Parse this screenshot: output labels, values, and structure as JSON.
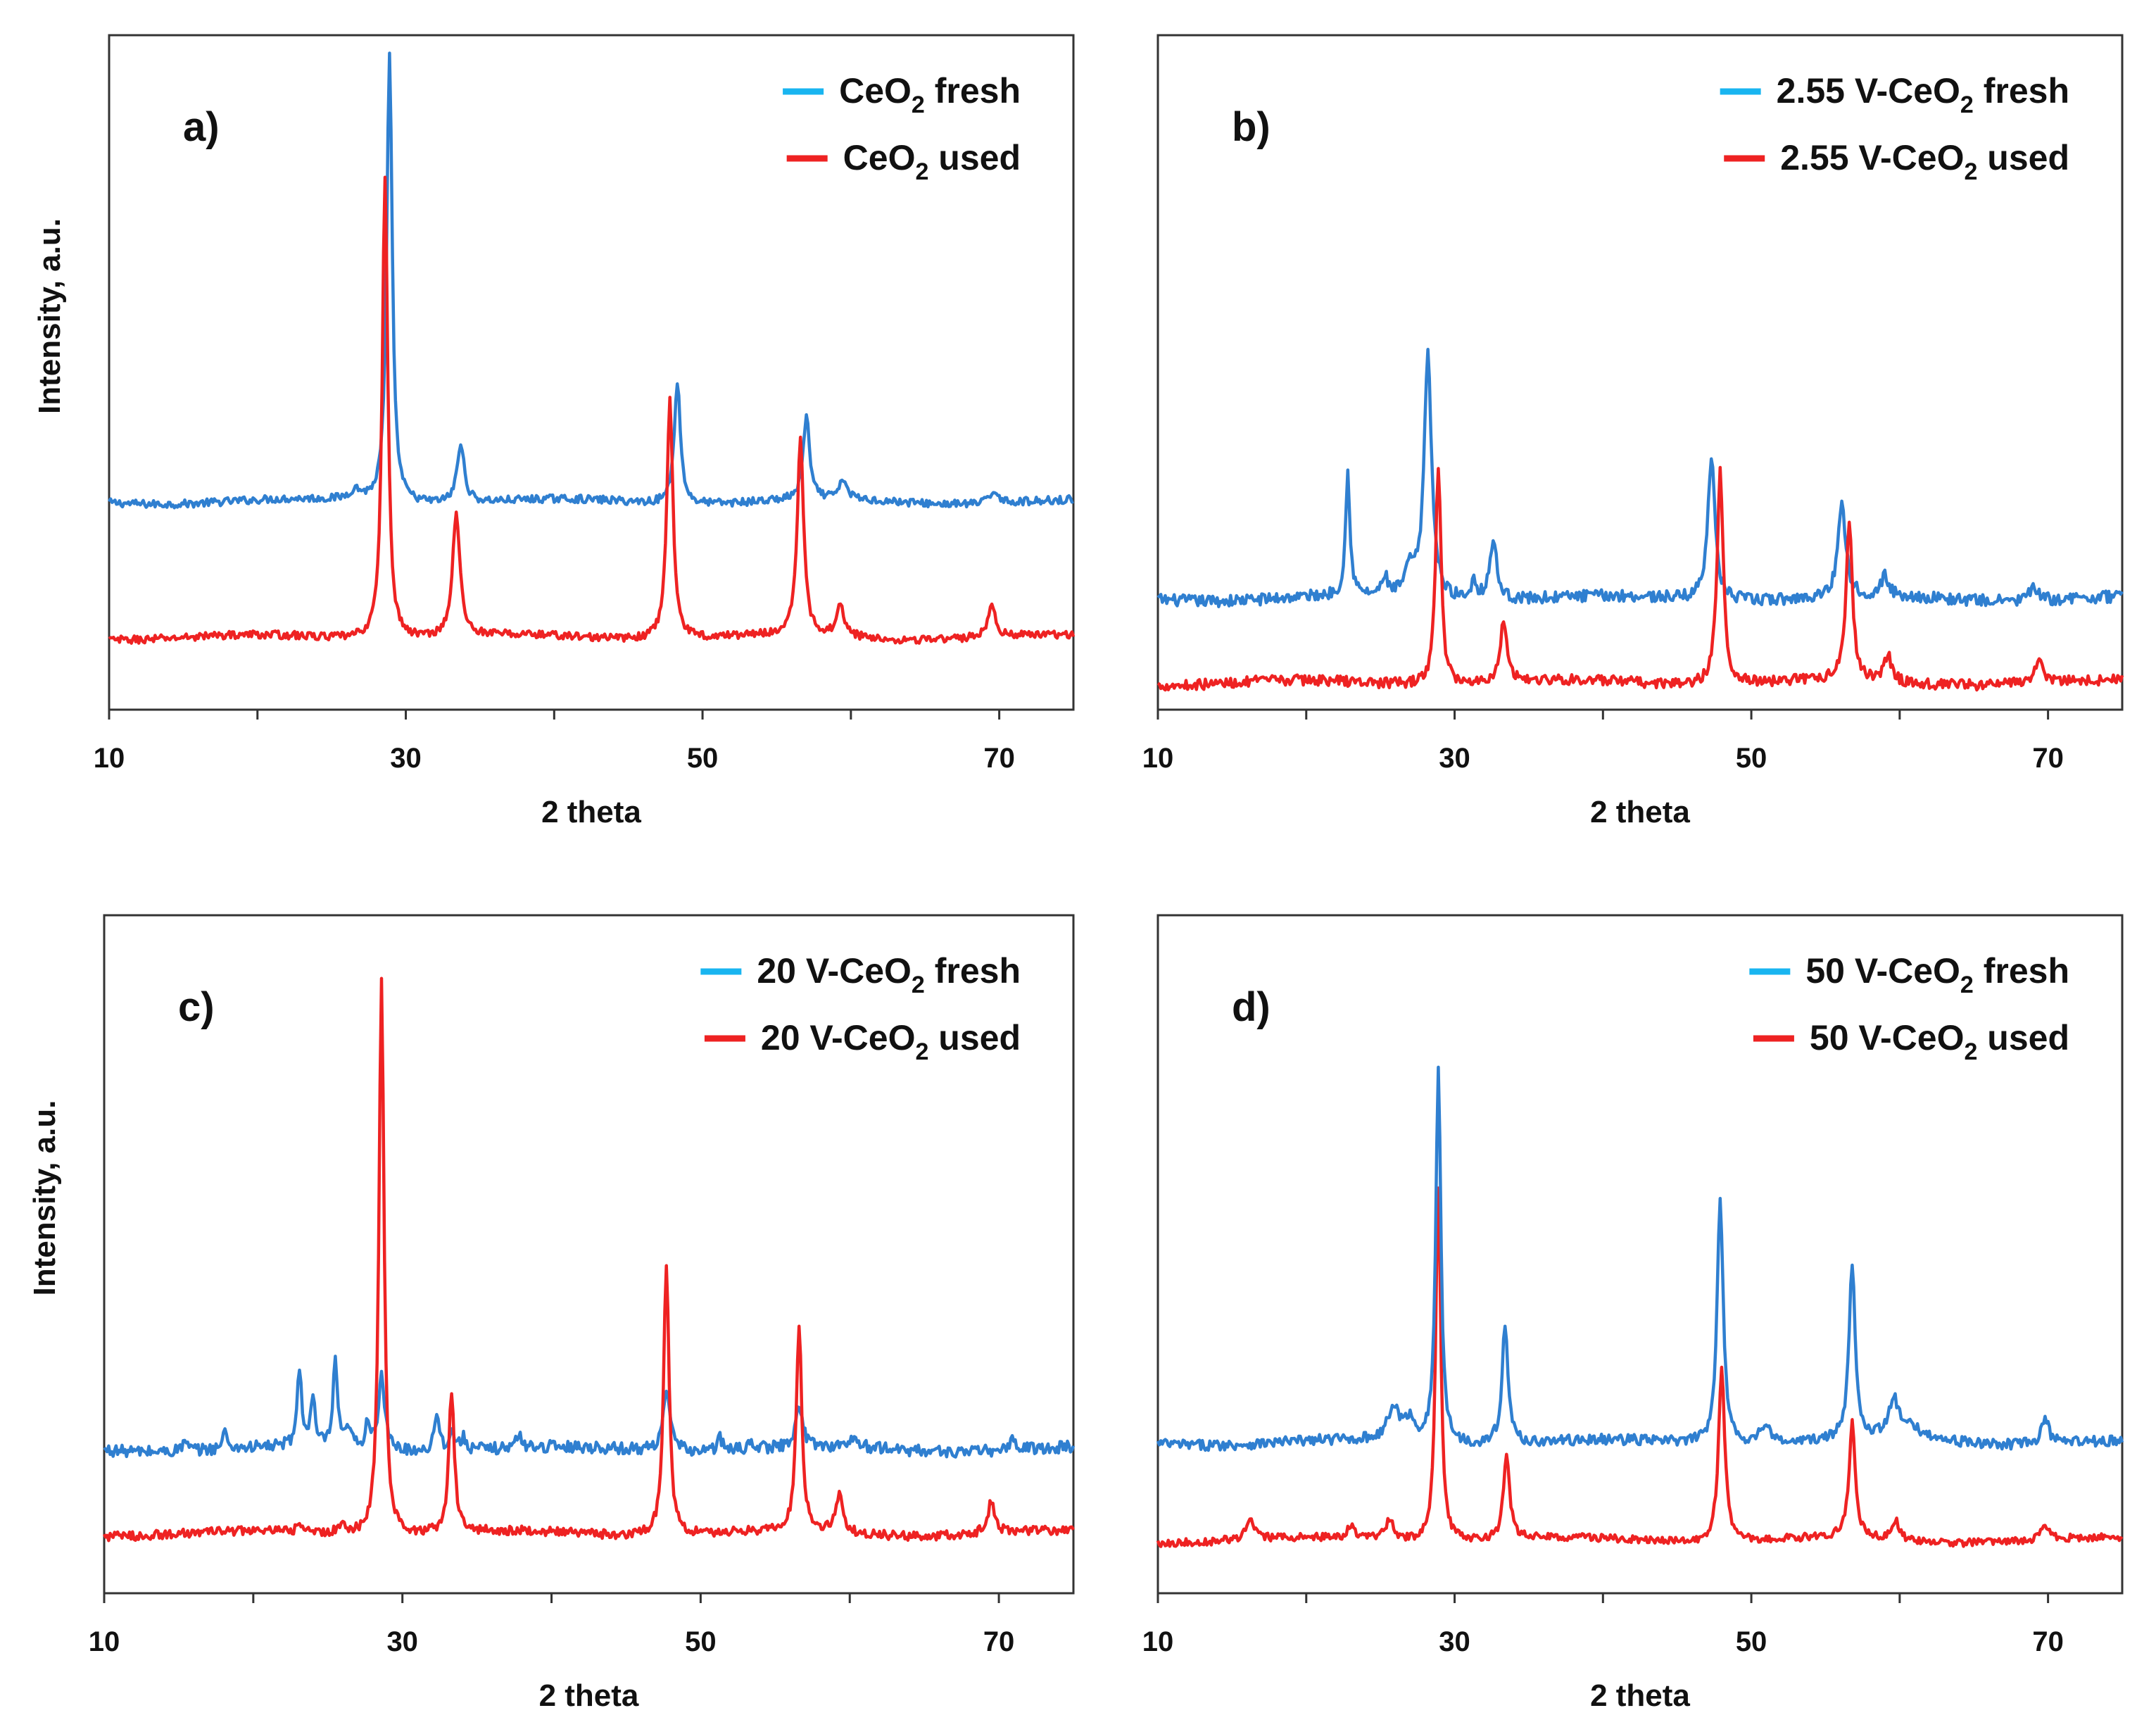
{
  "figure": {
    "x_axis_title": "2 theta",
    "y_axis_title": "Intensity, a.u."
  },
  "chart_data": [
    {
      "type": "line",
      "panel_label": "a)",
      "xlabel": "2 theta",
      "ylabel": "Intensity, a.u.",
      "xlim": [
        10,
        75
      ],
      "ylim": [
        0,
        100
      ],
      "xticks": [
        "10",
        "30",
        "50",
        "70"
      ],
      "show_ylabel": true,
      "series": [
        {
          "name": "CeO2 fresh",
          "legend_main": "CeO",
          "legend_sub": "2",
          "legend_rest": " fresh",
          "color": "#2f7fd0",
          "baseline": 30,
          "noise": 0.6,
          "peaks": [
            [
              28.9,
              69,
              0.22
            ],
            [
              26.6,
              1.5,
              0.5
            ],
            [
              33.7,
              9,
              0.3
            ],
            [
              48.3,
              19,
              0.25
            ],
            [
              57.0,
              13,
              0.25
            ],
            [
              59.5,
              3,
              0.3
            ],
            [
              69.7,
              2,
              0.35
            ]
          ]
        },
        {
          "name": "CeO2 used",
          "legend_main": "CeO",
          "legend_sub": "2",
          "legend_rest": " used",
          "color": "#ee2222",
          "baseline": 9,
          "noise": 0.6,
          "peaks": [
            [
              28.6,
              72,
              0.22
            ],
            [
              33.4,
              19,
              0.3
            ],
            [
              47.8,
              37,
              0.25
            ],
            [
              56.6,
              31,
              0.25
            ],
            [
              59.3,
              5,
              0.3
            ],
            [
              69.5,
              5,
              0.3
            ]
          ]
        }
      ]
    },
    {
      "type": "line",
      "panel_label": "b)",
      "xlabel": "2 theta",
      "ylabel": "",
      "xlim": [
        10,
        75
      ],
      "ylim": [
        0,
        100
      ],
      "xticks": [
        "10",
        "30",
        "50",
        "70"
      ],
      "show_ylabel": false,
      "series": [
        {
          "name": "2.55 V-CeO2 fresh",
          "legend_main": "2.55 V-CeO",
          "legend_sub": "2",
          "legend_rest": " fresh",
          "color": "#2f7fd0",
          "baseline": 15,
          "noise": 0.9,
          "peaks": [
            [
              22.8,
              19,
              0.18
            ],
            [
              25.3,
              3,
              0.2
            ],
            [
              27.0,
              4,
              0.4
            ],
            [
              28.2,
              38,
              0.3
            ],
            [
              31.3,
              3,
              0.2
            ],
            [
              32.6,
              9,
              0.3
            ],
            [
              47.3,
              22,
              0.3
            ],
            [
              56.1,
              15,
              0.3
            ],
            [
              59.0,
              3,
              0.3
            ],
            [
              69.0,
              2,
              0.35
            ]
          ]
        },
        {
          "name": "2.55 V-CeO2 used",
          "legend_main": "2.55 V-CeO",
          "legend_sub": "2",
          "legend_rest": " used",
          "color": "#ee2222",
          "baseline": 2,
          "noise": 0.8,
          "peaks": [
            [
              28.9,
              34,
              0.22
            ],
            [
              33.3,
              9,
              0.3
            ],
            [
              47.9,
              33,
              0.25
            ],
            [
              56.6,
              25,
              0.25
            ],
            [
              59.2,
              4,
              0.3
            ],
            [
              69.4,
              4,
              0.3
            ]
          ]
        }
      ]
    },
    {
      "type": "line",
      "panel_label": "c)",
      "xlabel": "2 theta",
      "ylabel": "Intensity, a.u.",
      "xlim": [
        10,
        75
      ],
      "ylim": [
        0,
        100
      ],
      "xticks": [
        "10",
        "30",
        "50",
        "70"
      ],
      "show_ylabel": true,
      "series": [
        {
          "name": "20 V-CeO2 fresh",
          "legend_main": "20 V-CeO",
          "legend_sub": "2",
          "legend_rest": " fresh",
          "color": "#2f7fd0",
          "baseline": 20,
          "noise": 0.9,
          "peaks": [
            [
              15.4,
              1.5,
              0.2
            ],
            [
              18.1,
              2.5,
              0.2
            ],
            [
              23.1,
              12,
              0.18
            ],
            [
              24.0,
              7,
              0.18
            ],
            [
              25.5,
              13,
              0.18
            ],
            [
              26.4,
              3,
              0.2
            ],
            [
              27.7,
              4,
              0.2
            ],
            [
              28.6,
              11,
              0.25
            ],
            [
              32.3,
              6,
              0.2
            ],
            [
              33.3,
              3,
              0.2
            ],
            [
              34.1,
              2,
              0.2
            ],
            [
              37.8,
              2,
              0.2
            ],
            [
              47.7,
              9,
              0.3
            ],
            [
              51.3,
              2,
              0.2
            ],
            [
              53.4,
              1.5,
              0.2
            ],
            [
              56.6,
              6,
              0.3
            ],
            [
              60.3,
              1.5,
              0.3
            ],
            [
              71.0,
              1.5,
              0.3
            ]
          ]
        },
        {
          "name": "20 V-CeO2 used",
          "legend_main": "20 V-CeO",
          "legend_sub": "2",
          "legend_rest": " used",
          "color": "#ee2222",
          "baseline": 7,
          "noise": 0.7,
          "peaks": [
            [
              28.6,
              86,
              0.2
            ],
            [
              33.3,
              22,
              0.22
            ],
            [
              47.7,
              42,
              0.22
            ],
            [
              56.6,
              32,
              0.22
            ],
            [
              59.3,
              6,
              0.28
            ],
            [
              69.5,
              5,
              0.28
            ],
            [
              23.1,
              1.5,
              0.2
            ],
            [
              26.0,
              1.5,
              0.3
            ]
          ]
        }
      ]
    },
    {
      "type": "line",
      "panel_label": "d)",
      "xlabel": "2 theta",
      "ylabel": "",
      "xlim": [
        10,
        75
      ],
      "ylim": [
        0,
        100
      ],
      "xticks": [
        "10",
        "30",
        "50",
        "70"
      ],
      "show_ylabel": false,
      "series": [
        {
          "name": "50 V-CeO2 fresh",
          "legend_main": "50 V-CeO",
          "legend_sub": "2",
          "legend_rest": " fresh",
          "color": "#2f7fd0",
          "baseline": 21,
          "noise": 0.8,
          "peaks": [
            [
              25.9,
              5,
              0.5
            ],
            [
              27.0,
              3,
              0.4
            ],
            [
              28.9,
              58,
              0.2
            ],
            [
              33.4,
              18,
              0.25
            ],
            [
              47.9,
              38,
              0.25
            ],
            [
              50.9,
              3,
              0.4
            ],
            [
              56.8,
              27,
              0.25
            ],
            [
              59.6,
              5,
              0.35
            ],
            [
              69.8,
              4,
              0.3
            ],
            [
              60.5,
              2,
              1.5
            ]
          ]
        },
        {
          "name": "50 V-CeO2 used",
          "legend_main": "50 V-CeO",
          "legend_sub": "2",
          "legend_rest": " used",
          "color": "#ee2222",
          "baseline": 6,
          "noise": 0.6,
          "peaks": [
            [
              16.2,
              3,
              0.3
            ],
            [
              23.0,
              2,
              0.3
            ],
            [
              25.6,
              3,
              0.4
            ],
            [
              28.9,
              55,
              0.2
            ],
            [
              33.5,
              13,
              0.25
            ],
            [
              48.0,
              27,
              0.25
            ],
            [
              56.8,
              18,
              0.25
            ],
            [
              59.7,
              3,
              0.3
            ],
            [
              69.8,
              2,
              0.3
            ]
          ]
        }
      ]
    }
  ]
}
